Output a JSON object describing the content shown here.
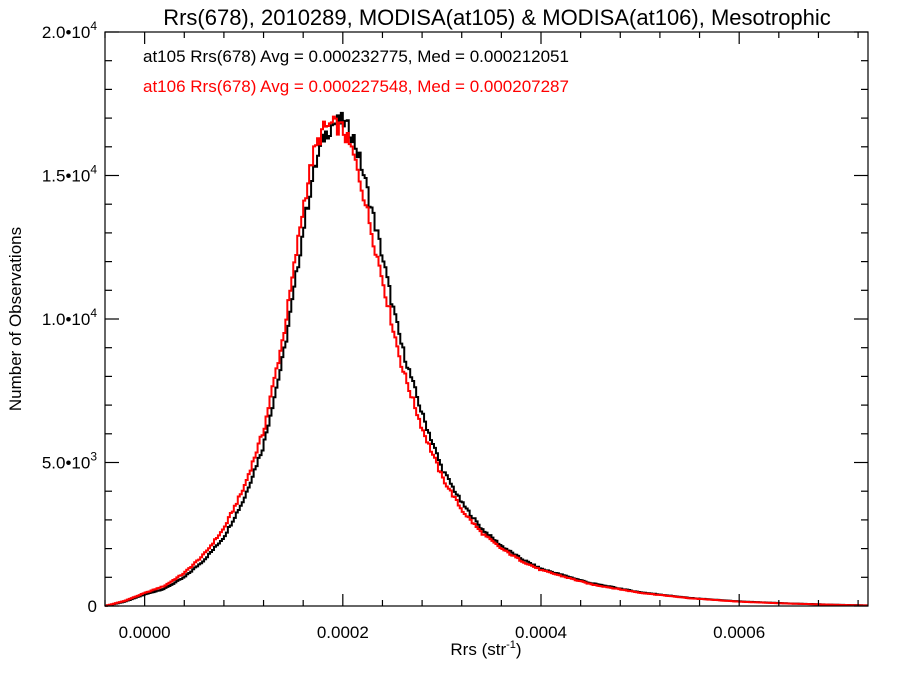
{
  "chart_data": {
    "type": "line",
    "title": "Rrs(678), 2010289, MODISA(at105) & MODISA(at106), Mesotrophic",
    "xlabel": "Rrs (str",
    "xlabel_sup": "-1",
    "xlabel_tail": ")",
    "ylabel": "Number of Observations",
    "xlim": [
      -4e-05,
      0.00073
    ],
    "ylim": [
      0,
      20000
    ],
    "xticks": [
      {
        "value": 0.0,
        "label": "0.0000"
      },
      {
        "value": 0.0002,
        "label": "0.0002"
      },
      {
        "value": 0.0004,
        "label": "0.0004"
      },
      {
        "value": 0.0006,
        "label": "0.0006"
      }
    ],
    "yticks": [
      {
        "value": 0,
        "label": "0",
        "exp": ""
      },
      {
        "value": 5000,
        "label": "5.0•10",
        "exp": "3"
      },
      {
        "value": 10000,
        "label": "1.0•10",
        "exp": "4"
      },
      {
        "value": 15000,
        "label": "1.5•10",
        "exp": "4"
      },
      {
        "value": 20000,
        "label": "2.0•10",
        "exp": "4"
      }
    ],
    "grid": false,
    "legend_position": "top-left",
    "annotations": [
      {
        "text": "at105 Rrs(678) Avg = 0.000232775, Med = 0.000212051",
        "color": "#000000"
      },
      {
        "text": "at106 Rrs(678) Avg = 0.000227548, Med = 0.000207287",
        "color": "#ff0000"
      }
    ],
    "series": [
      {
        "color": "#000000",
        "x": [
          -4e-05,
          -2e-05,
          0.0,
          2e-05,
          4e-05,
          6e-05,
          8e-05,
          0.0001,
          0.00012,
          0.00014,
          0.00015,
          0.00016,
          0.00017,
          0.00018,
          0.00019,
          0.0002,
          0.00021,
          0.00022,
          0.00023,
          0.00024,
          0.00025,
          0.00026,
          0.00028,
          0.0003,
          0.00032,
          0.00034,
          0.00036,
          0.00038,
          0.0004,
          0.00045,
          0.0005,
          0.00055,
          0.0006,
          0.00065,
          0.0007,
          0.00073
        ],
        "y": [
          0,
          150,
          400,
          600,
          1000,
          1600,
          2400,
          3700,
          5600,
          8700,
          10800,
          13100,
          15000,
          16300,
          16800,
          16900,
          16400,
          15200,
          13700,
          12200,
          10500,
          9000,
          6700,
          4800,
          3600,
          2700,
          2100,
          1650,
          1300,
          800,
          480,
          280,
          160,
          90,
          40,
          20
        ]
      },
      {
        "color": "#ff0000",
        "x": [
          -4e-05,
          -2e-05,
          0.0,
          2e-05,
          4e-05,
          6e-05,
          8e-05,
          0.0001,
          0.00012,
          0.00014,
          0.00015,
          0.00016,
          0.00017,
          0.00018,
          0.00019,
          0.0002,
          0.00021,
          0.00022,
          0.00023,
          0.00024,
          0.00025,
          0.00026,
          0.00028,
          0.0003,
          0.00032,
          0.00034,
          0.00036,
          0.00038,
          0.0004,
          0.00045,
          0.0005,
          0.00055,
          0.0006,
          0.00065,
          0.0007,
          0.00073
        ],
        "y": [
          0,
          180,
          450,
          700,
          1150,
          1800,
          2700,
          4100,
          6100,
          9400,
          11600,
          13900,
          15700,
          16600,
          16800,
          16600,
          15800,
          14500,
          12900,
          11400,
          9800,
          8300,
          6200,
          4500,
          3350,
          2550,
          2000,
          1580,
          1250,
          760,
          460,
          270,
          150,
          85,
          38,
          18
        ]
      }
    ]
  }
}
